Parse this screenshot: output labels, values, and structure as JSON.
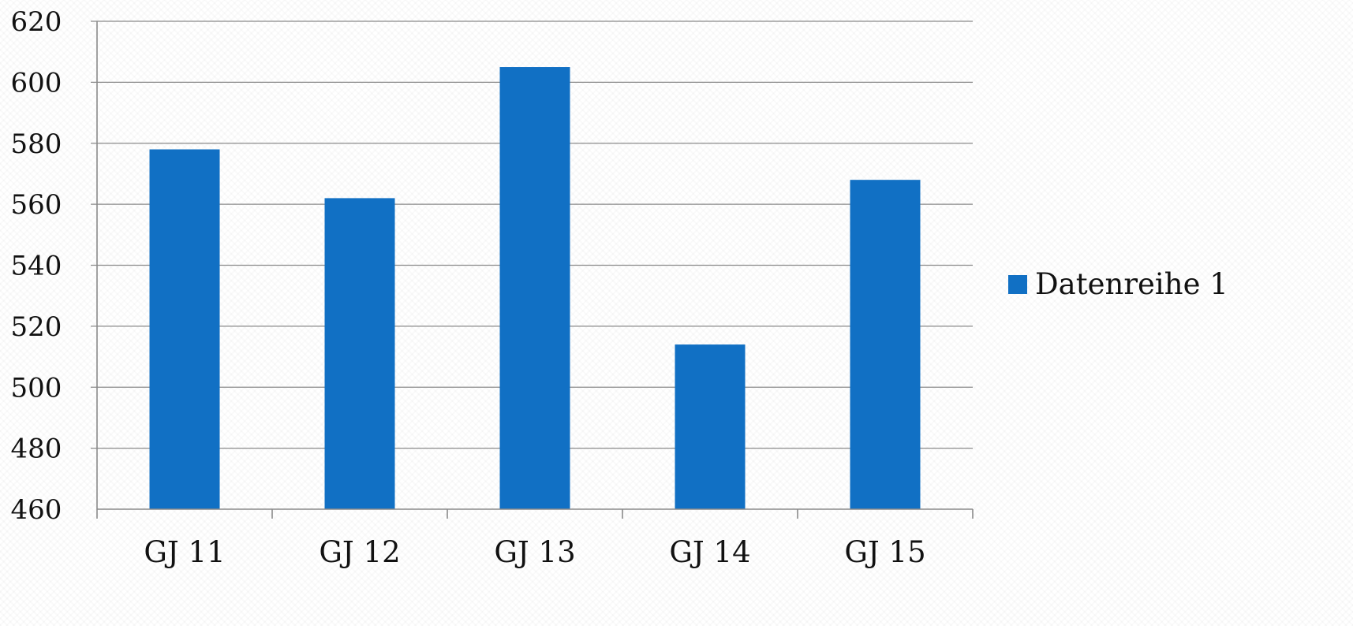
{
  "chart_data": {
    "type": "bar",
    "categories": [
      "GJ 11",
      "GJ 12",
      "GJ 13",
      "GJ 14",
      "GJ 15"
    ],
    "series": [
      {
        "name": "Datenreihe 1",
        "values": [
          578,
          562,
          605,
          514,
          568
        ],
        "color": "#1170c4"
      }
    ],
    "title": "",
    "xlabel": "",
    "ylabel": "",
    "ylim": [
      460,
      620
    ],
    "yticks": [
      "460",
      "480",
      "500",
      "520",
      "540",
      "560",
      "580",
      "600",
      "620"
    ],
    "grid": true,
    "legend_position": "right"
  }
}
